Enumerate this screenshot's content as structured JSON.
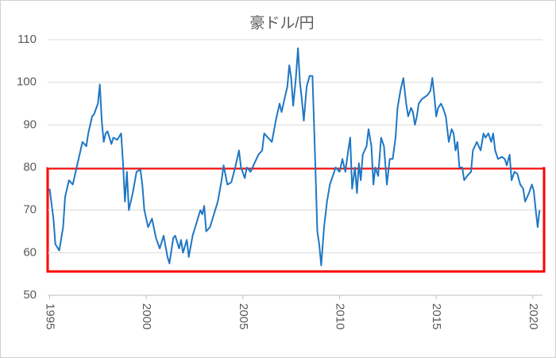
{
  "chart_data": {
    "type": "line",
    "title": "豪ドル/円",
    "x": [
      1995.0,
      1995.2,
      1995.3,
      1995.5,
      1995.7,
      1995.8,
      1996.0,
      1996.2,
      1996.4,
      1996.6,
      1996.7,
      1996.9,
      1997.0,
      1997.2,
      1997.3,
      1997.5,
      1997.6,
      1997.7,
      1997.8,
      1997.9,
      1998.0,
      1998.2,
      1998.3,
      1998.5,
      1998.7,
      1998.8,
      1998.9,
      1999.0,
      1999.1,
      1999.3,
      1999.5,
      1999.7,
      1999.8,
      1999.9,
      2000.1,
      2000.3,
      2000.5,
      2000.7,
      2000.9,
      2001.1,
      2001.2,
      2001.4,
      2001.5,
      2001.7,
      2001.8,
      2001.9,
      2002.1,
      2002.2,
      2002.4,
      2002.6,
      2002.8,
      2002.9,
      2003.0,
      2003.1,
      2003.3,
      2003.5,
      2003.7,
      2003.9,
      2004.0,
      2004.2,
      2004.4,
      2004.6,
      2004.8,
      2004.9,
      2005.1,
      2005.2,
      2005.4,
      2005.6,
      2005.8,
      2006.0,
      2006.1,
      2006.3,
      2006.5,
      2006.7,
      2006.9,
      2007.0,
      2007.2,
      2007.3,
      2007.4,
      2007.5,
      2007.6,
      2007.7,
      2007.75,
      2007.85,
      2007.95,
      2008.05,
      2008.15,
      2008.3,
      2008.45,
      2008.6,
      2008.75,
      2008.85,
      2008.95,
      2009.05,
      2009.2,
      2009.35,
      2009.5,
      2009.65,
      2009.8,
      2010.0,
      2010.15,
      2010.3,
      2010.45,
      2010.55,
      2010.65,
      2010.8,
      2010.9,
      2011.0,
      2011.1,
      2011.2,
      2011.4,
      2011.5,
      2011.65,
      2011.75,
      2011.85,
      2012.0,
      2012.15,
      2012.3,
      2012.45,
      2012.6,
      2012.75,
      2012.9,
      2013.0,
      2013.15,
      2013.3,
      2013.45,
      2013.55,
      2013.7,
      2013.8,
      2013.9,
      2014.0,
      2014.1,
      2014.25,
      2014.4,
      2014.55,
      2014.7,
      2014.8,
      2014.9,
      2015.0,
      2015.1,
      2015.25,
      2015.35,
      2015.5,
      2015.65,
      2015.8,
      2015.9,
      2016.0,
      2016.1,
      2016.2,
      2016.35,
      2016.45,
      2016.6,
      2016.8,
      2016.9,
      2017.1,
      2017.3,
      2017.45,
      2017.55,
      2017.7,
      2017.85,
      2017.95,
      2018.05,
      2018.2,
      2018.4,
      2018.55,
      2018.65,
      2018.8,
      2018.9,
      2019.05,
      2019.2,
      2019.35,
      2019.5,
      2019.6,
      2019.8,
      2019.95,
      2020.05,
      2020.15,
      2020.25,
      2020.35
    ],
    "series": [
      {
        "color": "#1f77c4",
        "values": [
          75,
          68,
          62,
          60.5,
          66,
          73,
          77,
          76,
          80,
          84,
          86,
          85,
          88,
          92,
          92.5,
          95,
          99.5,
          91,
          86,
          88,
          88.5,
          85.5,
          87,
          86.5,
          88,
          81,
          72,
          79,
          70,
          74,
          79,
          79.5,
          76,
          70,
          66,
          68,
          63.5,
          61,
          64,
          59,
          57.5,
          63.5,
          64,
          61,
          63,
          60,
          63,
          59,
          64,
          67,
          70,
          69,
          71,
          65,
          66,
          69,
          72,
          77,
          80.5,
          76,
          76.5,
          80,
          84,
          80,
          77.5,
          80,
          79,
          81,
          83,
          84,
          88,
          87,
          86,
          91,
          95,
          93,
          97,
          99,
          104,
          101,
          94.5,
          99,
          101.5,
          108,
          100,
          96,
          91,
          99,
          101.5,
          101.5,
          80,
          65,
          62,
          57,
          66,
          72,
          76,
          78,
          80,
          79,
          82,
          79,
          84,
          87,
          75,
          80,
          74,
          81,
          77,
          83,
          85,
          89,
          85,
          76,
          80,
          78,
          87,
          85,
          76,
          82,
          82,
          87,
          94,
          98,
          101,
          95,
          92,
          94,
          93,
          90,
          92,
          95,
          96,
          96.5,
          97,
          98,
          101,
          97,
          92,
          94,
          95,
          94,
          92,
          86,
          89,
          88,
          84,
          86,
          80,
          80,
          77,
          78,
          79,
          84,
          86,
          84,
          88,
          87,
          88,
          86,
          88,
          84,
          82,
          82.5,
          82,
          80.5,
          83,
          77,
          79,
          78.5,
          76,
          75,
          72,
          74,
          76,
          74.5,
          70,
          66,
          70
        ]
      }
    ],
    "xlim": [
      1994.9,
      2020.5
    ],
    "xticks": [
      1995,
      2000,
      2005,
      2010,
      2015,
      2020
    ],
    "ylim": [
      50,
      110
    ],
    "yticks": [
      50,
      60,
      70,
      80,
      90,
      100,
      110
    ],
    "grid": true
  }
}
